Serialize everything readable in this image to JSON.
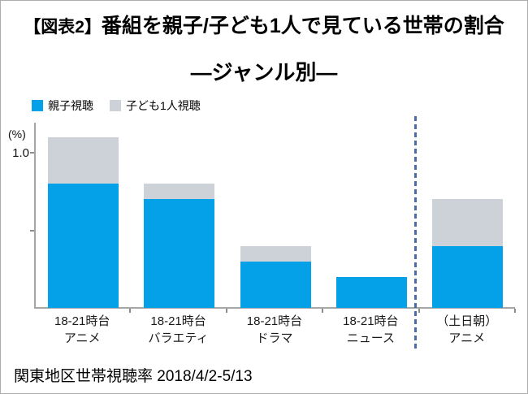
{
  "title": {
    "prefix": "【図表2】",
    "main": "番組を親子/子ども1人で見ている世帯の割合",
    "line2": "―ジャンル別―"
  },
  "y_axis": {
    "unit_label": "(%)",
    "tick_label_top": "1.0"
  },
  "footer": {
    "caption": "関東地区世帯視聴率 2018/4/2-5/13"
  },
  "chart_data": {
    "type": "bar",
    "stacked": true,
    "title": "【図表2】番組を親子/子ども1人で見ている世帯の割合 ―ジャンル別―",
    "categories": [
      {
        "line1": "18-21時台",
        "line2": "アニメ"
      },
      {
        "line1": "18-21時台",
        "line2": "バラエティ"
      },
      {
        "line1": "18-21時台",
        "line2": "ドラマ"
      },
      {
        "line1": "18-21時台",
        "line2": "ニュース"
      },
      {
        "line1": "（土日朝）",
        "line2": "アニメ"
      }
    ],
    "series": [
      {
        "name": "親子視聴",
        "color": "#04A0E8",
        "values": [
          0.8,
          0.7,
          0.3,
          0.2,
          0.4
        ]
      },
      {
        "name": "子ども1人視聴",
        "color": "#CDD2D8",
        "values": [
          0.3,
          0.1,
          0.1,
          0,
          0.3
        ]
      }
    ],
    "ylabel": "(%)",
    "ylim": [
      0,
      1.2
    ],
    "yticks": [
      0,
      0.5,
      1.0
    ],
    "ytick_labels": [
      "",
      "",
      "1.0"
    ],
    "grid": false,
    "legend_position": "top-left",
    "separator": {
      "type": "dashed-vertical",
      "after_category_index": 3,
      "color": "#4A6CA4"
    },
    "footnote": "関東地区世帯視聴率 2018/4/2-5/13"
  }
}
